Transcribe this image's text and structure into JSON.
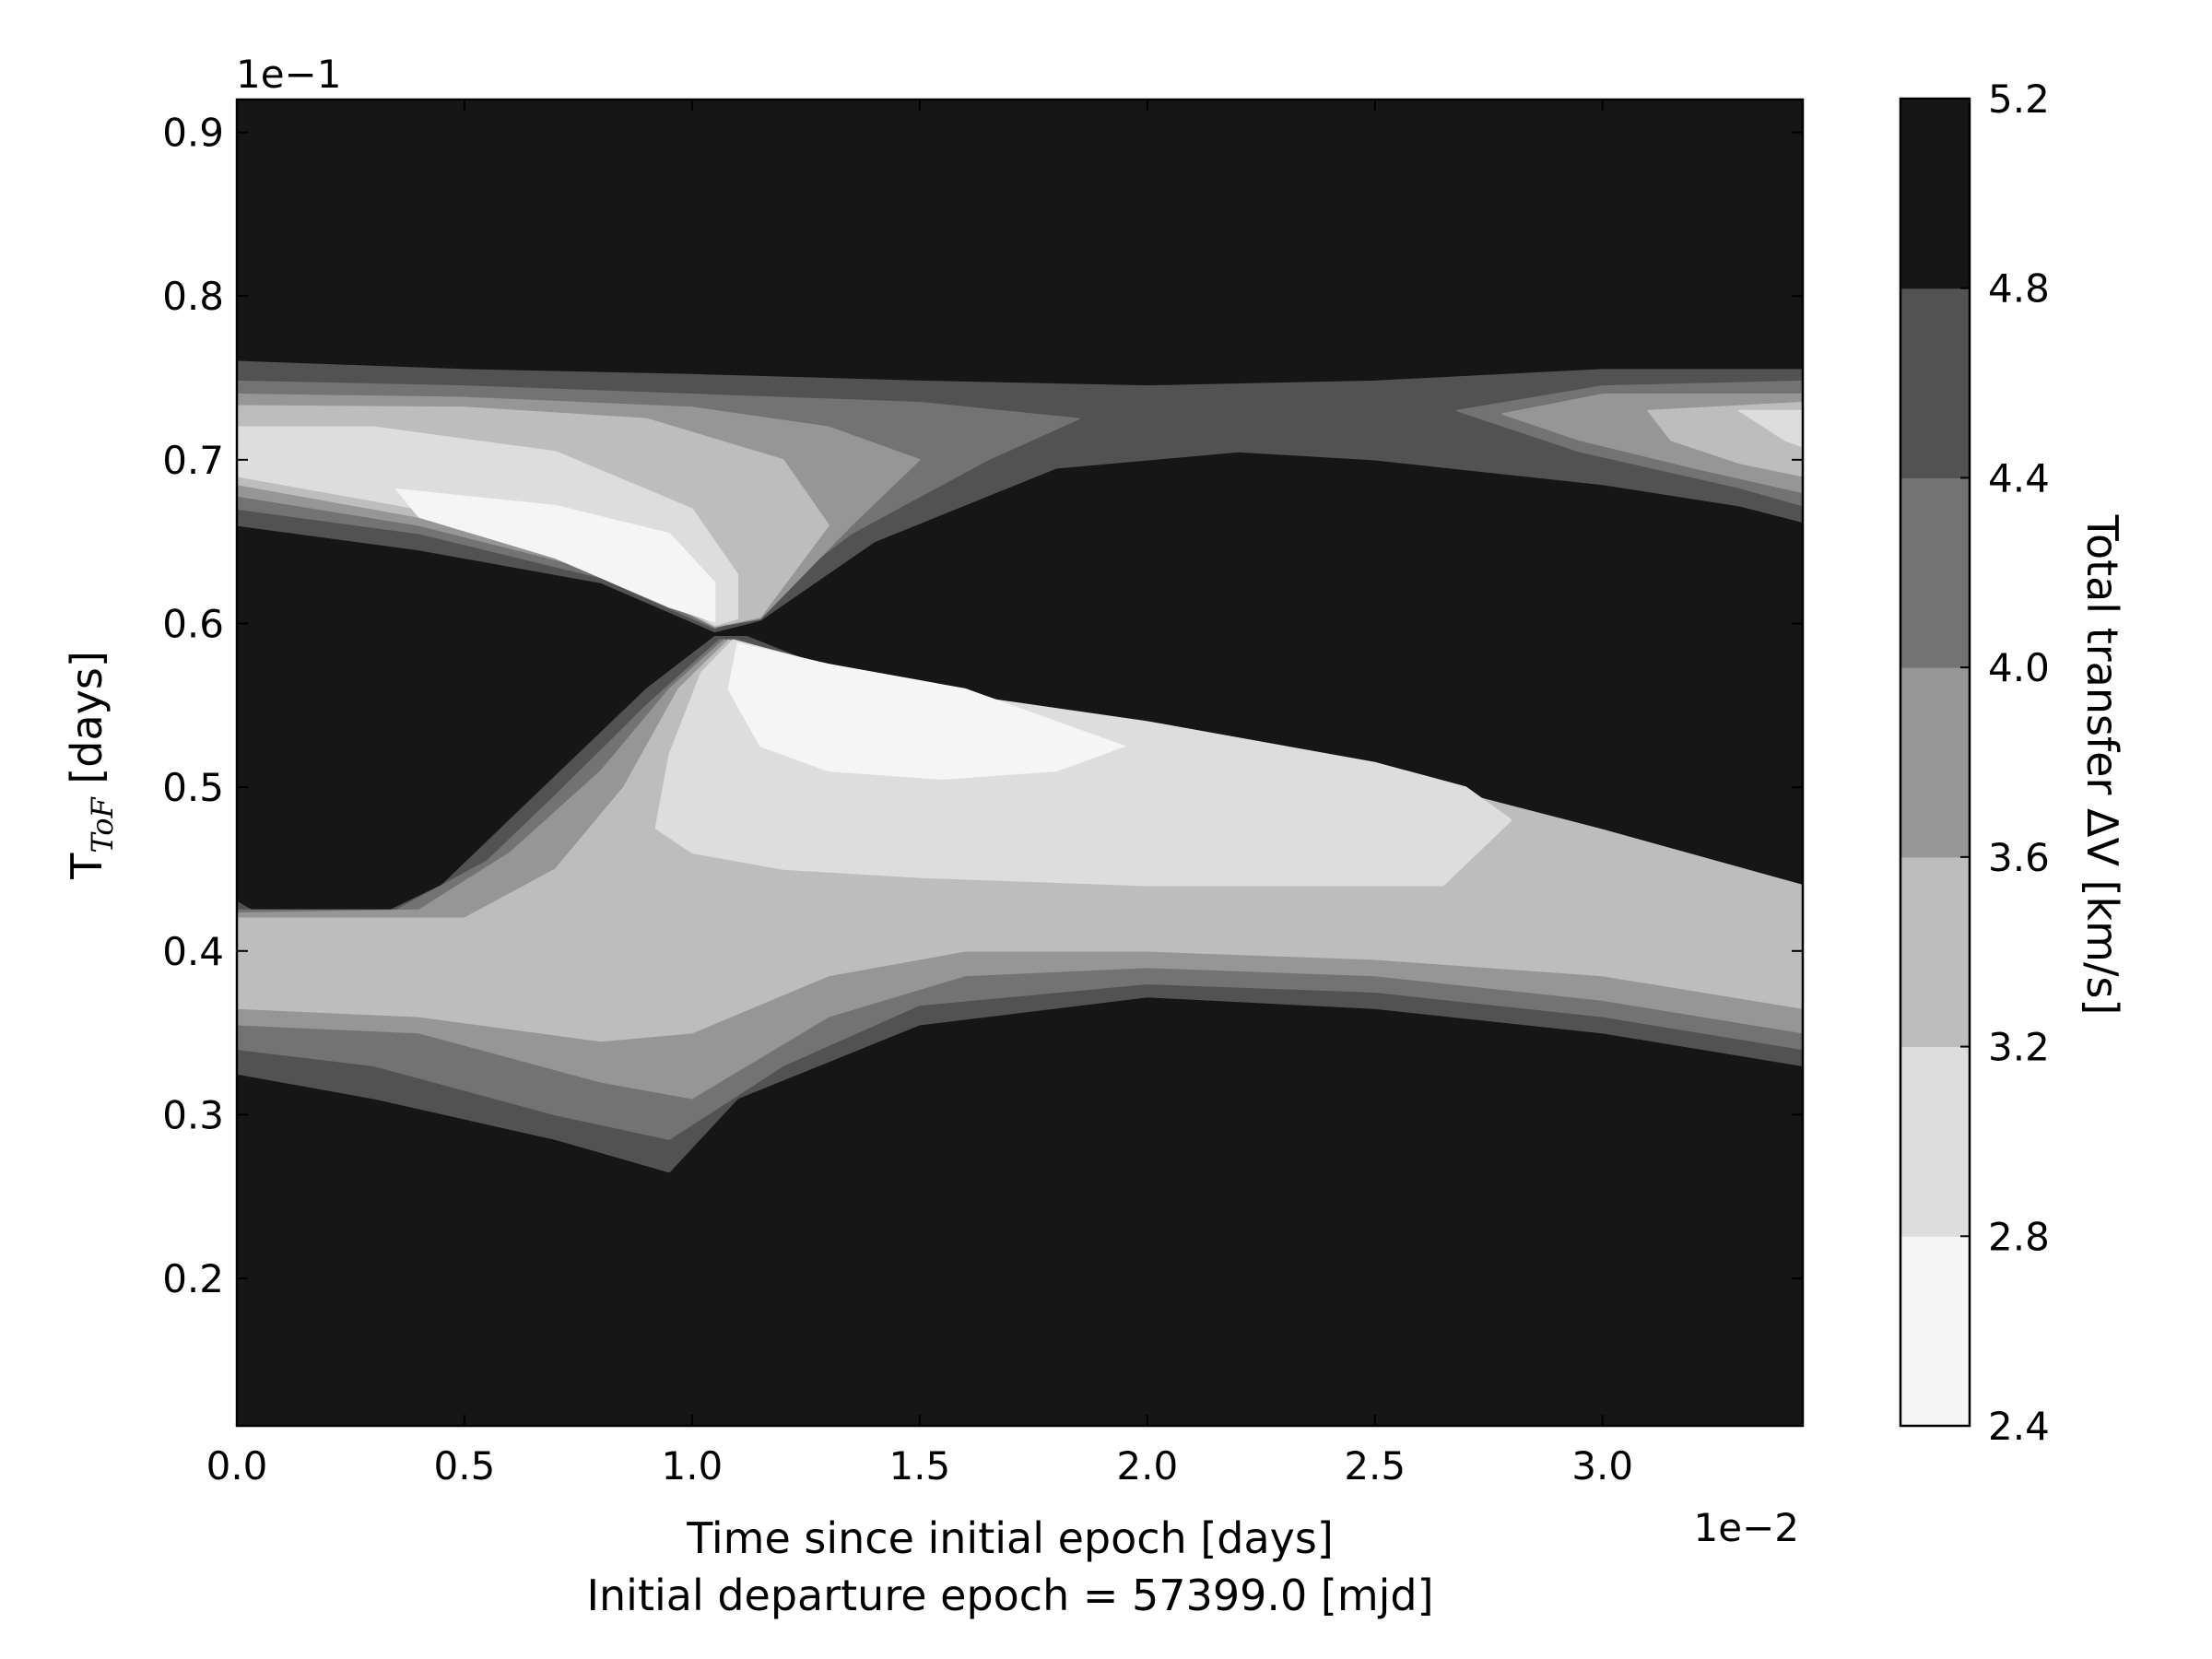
{
  "chart_data": {
    "type": "contour",
    "xlabel": "Time since initial epoch [days]",
    "subtitle": "Initial departure epoch = 57399.0 [mjd]",
    "ylabel": "T",
    "ylabel_subscript": "ToF",
    "ylabel_suffix": " [days]",
    "x_offset_text": "1e−2",
    "y_offset_text": "1e−1",
    "xlim": [
      0.0,
      3.44
    ],
    "ylim": [
      0.11,
      0.92
    ],
    "x_ticks": [
      0.0,
      0.5,
      1.0,
      1.5,
      2.0,
      2.5,
      3.0
    ],
    "x_tick_labels": [
      "0.0",
      "0.5",
      "1.0",
      "1.5",
      "2.0",
      "2.5",
      "3.0"
    ],
    "y_ticks": [
      0.2,
      0.3,
      0.4,
      0.5,
      0.6,
      0.7,
      0.8,
      0.9
    ],
    "y_tick_labels": [
      "0.2",
      "0.3",
      "0.4",
      "0.5",
      "0.6",
      "0.7",
      "0.8",
      "0.9"
    ],
    "colorbar": {
      "label": "Total transfer ΔV [km/s]",
      "levels": [
        2.4,
        2.8,
        3.2,
        3.6,
        4.0,
        4.4,
        4.8,
        5.2
      ],
      "level_labels": [
        "2.4",
        "2.8",
        "3.2",
        "3.6",
        "4.0",
        "4.4",
        "4.8",
        "5.2"
      ],
      "colors": [
        "#f5f5f5",
        "#dddddd",
        "#bdbdbd",
        "#969696",
        "#737373",
        "#525252",
        "#161616"
      ]
    },
    "contours": [
      {
        "level": 4.8,
        "color": "#525252",
        "regions": [
          [
            [
              0,
              0.76
            ],
            [
              0.5,
              0.755
            ],
            [
              1.0,
              0.752
            ],
            [
              1.5,
              0.748
            ],
            [
              2.0,
              0.745
            ],
            [
              2.5,
              0.748
            ],
            [
              3.0,
              0.755
            ],
            [
              3.44,
              0.755
            ],
            [
              3.44,
              0.662
            ],
            [
              3.3,
              0.672
            ],
            [
              3.0,
              0.685
            ],
            [
              2.5,
              0.7
            ],
            [
              2.2,
              0.705
            ],
            [
              1.8,
              0.695
            ],
            [
              1.4,
              0.65
            ],
            [
              1.15,
              0.602
            ],
            [
              1.05,
              0.595
            ],
            [
              0.8,
              0.625
            ],
            [
              0.4,
              0.645
            ],
            [
              0,
              0.66
            ]
          ],
          [
            [
              1.05,
              0.592
            ],
            [
              1.12,
              0.592
            ],
            [
              1.5,
              0.55
            ],
            [
              2.0,
              0.53
            ],
            [
              2.5,
              0.5
            ],
            [
              3.0,
              0.462
            ],
            [
              3.44,
              0.428
            ],
            [
              3.44,
              0.33
            ],
            [
              3.0,
              0.35
            ],
            [
              2.5,
              0.365
            ],
            [
              2.0,
              0.372
            ],
            [
              1.5,
              0.355
            ],
            [
              1.1,
              0.31
            ],
            [
              0.95,
              0.265
            ],
            [
              0.7,
              0.285
            ],
            [
              0.3,
              0.31
            ],
            [
              0,
              0.325
            ],
            [
              0,
              0.43
            ],
            [
              0.05,
              0.422
            ],
            [
              0.3,
              0.42
            ],
            [
              0.45,
              0.44
            ],
            [
              0.6,
              0.48
            ],
            [
              0.75,
              0.52
            ],
            [
              0.9,
              0.56
            ]
          ]
        ]
      },
      {
        "level": 4.4,
        "color": "#737373",
        "regions": [
          [
            [
              0,
              0.748
            ],
            [
              0.5,
              0.745
            ],
            [
              1.0,
              0.74
            ],
            [
              1.5,
              0.735
            ],
            [
              1.85,
              0.725
            ],
            [
              1.65,
              0.7
            ],
            [
              1.35,
              0.655
            ],
            [
              1.1,
              0.602
            ],
            [
              1.05,
              0.597
            ],
            [
              0.8,
              0.628
            ],
            [
              0.4,
              0.655
            ],
            [
              0,
              0.67
            ]
          ],
          [
            [
              2.68,
              0.73
            ],
            [
              3.0,
              0.745
            ],
            [
              3.44,
              0.748
            ],
            [
              3.44,
              0.672
            ],
            [
              3.3,
              0.683
            ],
            [
              2.95,
              0.705
            ]
          ],
          [
            [
              1.06,
              0.59
            ],
            [
              1.1,
              0.59
            ],
            [
              1.5,
              0.553
            ],
            [
              2.0,
              0.532
            ],
            [
              2.5,
              0.502
            ],
            [
              3.0,
              0.465
            ],
            [
              3.44,
              0.43
            ],
            [
              3.44,
              0.34
            ],
            [
              3.0,
              0.36
            ],
            [
              2.5,
              0.375
            ],
            [
              2.0,
              0.38
            ],
            [
              1.5,
              0.367
            ],
            [
              1.2,
              0.33
            ],
            [
              0.95,
              0.285
            ],
            [
              0.7,
              0.3
            ],
            [
              0.3,
              0.33
            ],
            [
              0,
              0.34
            ],
            [
              0,
              0.425
            ],
            [
              0.35,
              0.425
            ],
            [
              0.55,
              0.455
            ],
            [
              0.7,
              0.495
            ],
            [
              0.9,
              0.55
            ]
          ]
        ]
      },
      {
        "level": 4.0,
        "color": "#969696",
        "regions": [
          [
            [
              0,
              0.74
            ],
            [
              0.5,
              0.738
            ],
            [
              1.0,
              0.732
            ],
            [
              1.3,
              0.72
            ],
            [
              1.5,
              0.7
            ],
            [
              1.35,
              0.66
            ],
            [
              1.15,
              0.603
            ],
            [
              1.05,
              0.598
            ],
            [
              0.8,
              0.632
            ],
            [
              0.4,
              0.66
            ],
            [
              0,
              0.678
            ]
          ],
          [
            [
              2.78,
              0.728
            ],
            [
              3.0,
              0.74
            ],
            [
              3.44,
              0.74
            ],
            [
              3.44,
              0.68
            ],
            [
              3.2,
              0.695
            ],
            [
              2.95,
              0.712
            ]
          ],
          [
            [
              1.07,
              0.59
            ],
            [
              1.5,
              0.555
            ],
            [
              2.0,
              0.535
            ],
            [
              2.5,
              0.505
            ],
            [
              3.0,
              0.47
            ],
            [
              3.44,
              0.435
            ],
            [
              3.44,
              0.35
            ],
            [
              3.0,
              0.37
            ],
            [
              2.5,
              0.385
            ],
            [
              2.0,
              0.39
            ],
            [
              1.6,
              0.385
            ],
            [
              1.3,
              0.36
            ],
            [
              1.0,
              0.31
            ],
            [
              0.8,
              0.32
            ],
            [
              0.4,
              0.35
            ],
            [
              0,
              0.355
            ],
            [
              0,
              0.423
            ],
            [
              0.4,
              0.425
            ],
            [
              0.6,
              0.46
            ],
            [
              0.8,
              0.51
            ],
            [
              0.95,
              0.56
            ]
          ]
        ]
      },
      {
        "level": 3.6,
        "color": "#bdbdbd",
        "regions": [
          [
            [
              0,
              0.733
            ],
            [
              0.5,
              0.732
            ],
            [
              0.9,
              0.725
            ],
            [
              1.2,
              0.7
            ],
            [
              1.3,
              0.66
            ],
            [
              1.15,
              0.604
            ],
            [
              1.05,
              0.598
            ],
            [
              0.8,
              0.635
            ],
            [
              0.4,
              0.665
            ],
            [
              0,
              0.685
            ]
          ],
          [
            [
              3.1,
              0.73
            ],
            [
              3.44,
              0.735
            ],
            [
              3.44,
              0.69
            ],
            [
              3.3,
              0.698
            ],
            [
              3.15,
              0.712
            ]
          ],
          [
            [
              1.08,
              0.59
            ],
            [
              1.5,
              0.558
            ],
            [
              2.0,
              0.538
            ],
            [
              2.5,
              0.51
            ],
            [
              3.0,
              0.474
            ],
            [
              3.44,
              0.44
            ],
            [
              3.44,
              0.365
            ],
            [
              3.0,
              0.385
            ],
            [
              2.5,
              0.395
            ],
            [
              2.0,
              0.4
            ],
            [
              1.6,
              0.4
            ],
            [
              1.3,
              0.385
            ],
            [
              1.0,
              0.35
            ],
            [
              0.8,
              0.345
            ],
            [
              0.4,
              0.36
            ],
            [
              0,
              0.365
            ],
            [
              0,
              0.42
            ],
            [
              0.5,
              0.42
            ],
            [
              0.7,
              0.45
            ],
            [
              0.85,
              0.5
            ],
            [
              0.97,
              0.56
            ]
          ]
        ]
      },
      {
        "level": 3.2,
        "color": "#dddddd",
        "regions": [
          [
            [
              0,
              0.72
            ],
            [
              0.3,
              0.72
            ],
            [
              0.7,
              0.705
            ],
            [
              1.0,
              0.67
            ],
            [
              1.1,
              0.63
            ],
            [
              1.1,
              0.603
            ],
            [
              1.05,
              0.599
            ],
            [
              0.8,
              0.64
            ],
            [
              0.4,
              0.67
            ],
            [
              0,
              0.69
            ]
          ],
          [
            [
              3.3,
              0.73
            ],
            [
              3.44,
              0.73
            ],
            [
              3.44,
              0.708
            ],
            [
              3.4,
              0.712
            ]
          ],
          [
            [
              1.09,
              0.59
            ],
            [
              1.5,
              0.56
            ],
            [
              2.0,
              0.54
            ],
            [
              2.5,
              0.515
            ],
            [
              2.7,
              0.5
            ],
            [
              2.8,
              0.48
            ],
            [
              2.65,
              0.44
            ],
            [
              2.0,
              0.44
            ],
            [
              1.5,
              0.445
            ],
            [
              1.2,
              0.45
            ],
            [
              1.0,
              0.46
            ],
            [
              0.92,
              0.475
            ],
            [
              0.95,
              0.52
            ],
            [
              1.02,
              0.57
            ]
          ]
        ]
      },
      {
        "level": 2.8,
        "color": "#f5f5f5",
        "regions": [
          [
            [
              0.35,
              0.682
            ],
            [
              0.7,
              0.672
            ],
            [
              0.95,
              0.655
            ],
            [
              1.05,
              0.625
            ],
            [
              1.05,
              0.601
            ],
            [
              0.95,
              0.61
            ],
            [
              0.7,
              0.64
            ],
            [
              0.4,
              0.665
            ]
          ],
          [
            [
              1.1,
              0.588
            ],
            [
              1.3,
              0.575
            ],
            [
              1.6,
              0.56
            ],
            [
              1.95,
              0.525
            ],
            [
              1.8,
              0.51
            ],
            [
              1.55,
              0.505
            ],
            [
              1.3,
              0.51
            ],
            [
              1.15,
              0.525
            ],
            [
              1.08,
              0.56
            ]
          ]
        ]
      }
    ]
  }
}
